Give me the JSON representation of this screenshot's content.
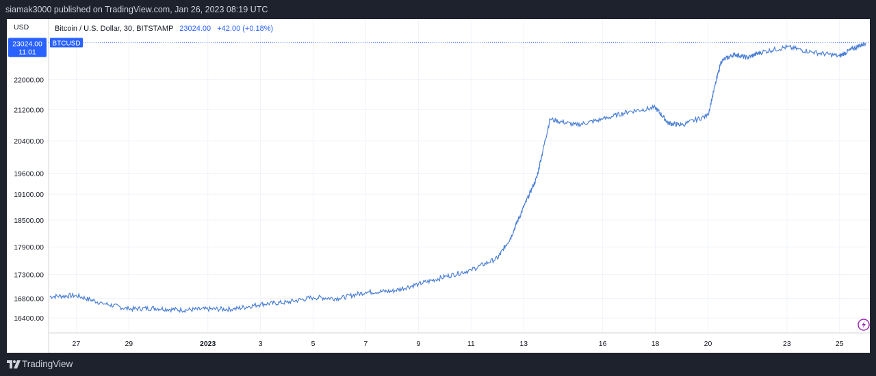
{
  "header": {
    "published_line": "siamak3000 published on TradingView.com, Jan 26, 2023 08:19 UTC"
  },
  "legend": {
    "symbol_description": "Bitcoin / U.S. Dollar, 30, BITSTAMP",
    "last_value": "23024.00",
    "change": "+42.00 (+0.18%)"
  },
  "price_axis": {
    "currency": "USD",
    "current_price_label": "23024.00",
    "countdown_label": "11:01"
  },
  "symbol_tag": "BTCUSD",
  "footer": {
    "brand": "TradingView"
  },
  "colors": {
    "series": "#4a7fd4",
    "price_badge": "#2962ff",
    "up_text": "#2962ff",
    "background_frame": "#1e222d"
  },
  "icons": {
    "quick_action": "lightning-icon",
    "brand": "tradingview-logo-icon"
  },
  "chart_data": {
    "type": "line",
    "title": "Bitcoin / U.S. Dollar, 30, BITSTAMP",
    "series": [
      {
        "name": "BTCUSD",
        "x": [
          "2022-12-26",
          "2022-12-27",
          "2022-12-28",
          "2022-12-29",
          "2022-12-30",
          "2022-12-31",
          "2023-01-01",
          "2023-01-02",
          "2023-01-03",
          "2023-01-04",
          "2023-01-05",
          "2023-01-06",
          "2023-01-07",
          "2023-01-08",
          "2023-01-09",
          "2023-01-10",
          "2023-01-11",
          "2023-01-12",
          "2023-01-12T12:00",
          "2023-01-13",
          "2023-01-13T12:00",
          "2023-01-14",
          "2023-01-15",
          "2023-01-16",
          "2023-01-17",
          "2023-01-18",
          "2023-01-18T12:00",
          "2023-01-19",
          "2023-01-20",
          "2023-01-20T12:00",
          "2023-01-21",
          "2023-01-21T12:00",
          "2023-01-22",
          "2023-01-23",
          "2023-01-24",
          "2023-01-25",
          "2023-01-25T12:00",
          "2023-01-26"
        ],
        "values": [
          16840,
          16860,
          16700,
          16580,
          16600,
          16560,
          16580,
          16580,
          16680,
          16720,
          16820,
          16800,
          16930,
          16950,
          17100,
          17250,
          17400,
          17650,
          18100,
          18800,
          19500,
          20950,
          20800,
          20950,
          21150,
          21250,
          20850,
          20800,
          21050,
          22500,
          22700,
          22600,
          22750,
          22900,
          22750,
          22650,
          22850,
          23024
        ],
        "color": "#4a7fd4"
      }
    ],
    "x_ticks": [
      "27",
      "29",
      "2023",
      "3",
      "5",
      "7",
      "9",
      "11",
      "13",
      "16",
      "18",
      "20",
      "23",
      "25"
    ],
    "y_ticks": [
      16400,
      16800,
      17300,
      17900,
      18500,
      19100,
      19600,
      20400,
      21200,
      22000,
      23024
    ],
    "y_tick_labels": [
      "16400.00",
      "16800.00",
      "17300.00",
      "17900.00",
      "18500.00",
      "19100.00",
      "19600.00",
      "20400.00",
      "21200.00",
      "22000.00"
    ],
    "ylabel": "USD",
    "ylim": [
      16100,
      23700
    ],
    "y_scale": "log",
    "grid": true,
    "legend": "top-left"
  }
}
